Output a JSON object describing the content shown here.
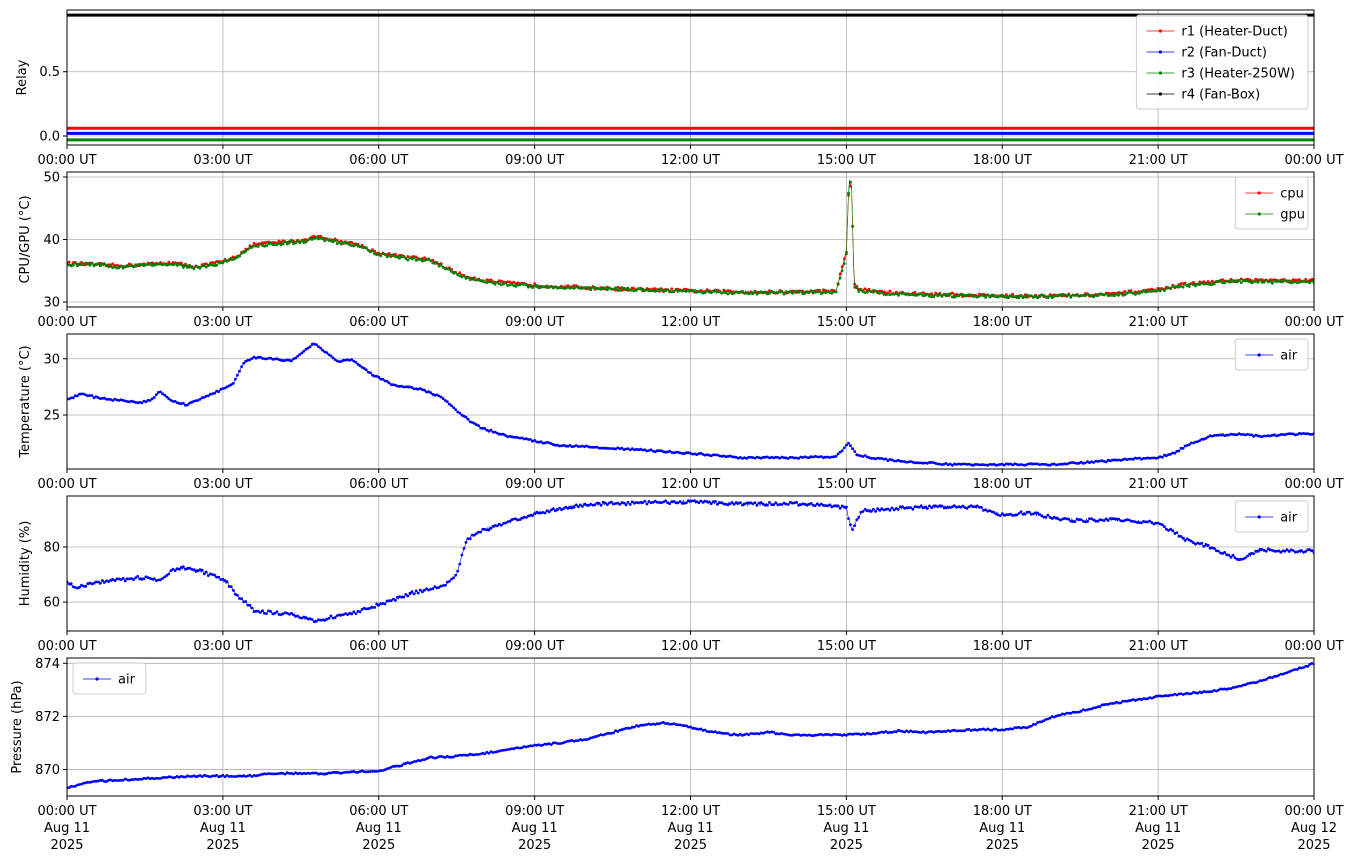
{
  "x_axis": {
    "tick_labels": [
      "00:00 UT",
      "03:00 UT",
      "06:00 UT",
      "09:00 UT",
      "12:00 UT",
      "15:00 UT",
      "18:00 UT",
      "21:00 UT",
      "00:00 UT"
    ],
    "date_labels": [
      "Aug 11",
      "Aug 11",
      "Aug 11",
      "Aug 11",
      "Aug 11",
      "Aug 11",
      "Aug 11",
      "Aug 11",
      "Aug 12"
    ],
    "year_labels": [
      "2025",
      "2025",
      "2025",
      "2025",
      "2025",
      "2025",
      "2025",
      "2025",
      "2025"
    ],
    "xlim_hours": [
      0,
      24
    ]
  },
  "colors": {
    "red": "#ff0000",
    "blue": "#0000ff",
    "green": "#008000",
    "black": "#000000"
  },
  "chart_data": [
    {
      "type": "line",
      "ylabel": "Relay",
      "ylim": [
        -0.07,
        0.98
      ],
      "yticks": [
        0.0,
        0.5
      ],
      "ytick_labels": [
        "0.0",
        "0.5"
      ],
      "grid": true,
      "legend_position": "top-right",
      "series": [
        {
          "name": "r1 (Heater-Duct)",
          "color": "#ff0000",
          "x": [
            0,
            24
          ],
          "y": [
            0.06,
            0.06
          ]
        },
        {
          "name": "r2 (Fan-Duct)",
          "color": "#0000ff",
          "x": [
            0,
            24
          ],
          "y": [
            0.02,
            0.02
          ]
        },
        {
          "name": "r3 (Heater-250W)",
          "color": "#008000",
          "x": [
            0,
            24
          ],
          "y": [
            -0.03,
            -0.03
          ]
        },
        {
          "name": "r4 (Fan-Box)",
          "color": "#000000",
          "x": [
            0,
            24
          ],
          "y": [
            0.94,
            0.94
          ]
        }
      ]
    },
    {
      "type": "line",
      "ylabel": "CPU/GPU (°C)",
      "ylim": [
        29.2,
        50.8
      ],
      "yticks": [
        30,
        40,
        50
      ],
      "ytick_labels": [
        "30",
        "40",
        "50"
      ],
      "grid": true,
      "legend_position": "top-right",
      "series": [
        {
          "name": "cpu",
          "color": "#ff0000",
          "x": [
            0,
            0.5,
            1,
            1.5,
            2,
            2.5,
            3,
            3.3,
            3.6,
            4,
            4.5,
            4.8,
            5.2,
            5.6,
            6,
            6.5,
            7,
            7.3,
            7.6,
            8,
            8.5,
            9,
            10,
            11,
            12,
            13,
            14,
            14.8,
            15.0,
            15.05,
            15.1,
            15.15,
            15.25,
            15.5,
            16,
            17,
            18,
            19,
            20,
            20.5,
            21,
            21.5,
            22,
            22.5,
            23,
            23.5,
            24
          ],
          "y": [
            36.2,
            36.0,
            35.8,
            36.0,
            36.3,
            35.6,
            36.5,
            37.5,
            39.2,
            39.5,
            39.8,
            40.5,
            39.8,
            39.2,
            37.8,
            37.2,
            36.8,
            35.5,
            34.3,
            33.5,
            33.0,
            32.7,
            32.3,
            32.0,
            31.8,
            31.6,
            31.6,
            31.8,
            38.0,
            49.5,
            48.0,
            33.0,
            32.0,
            31.8,
            31.4,
            31.2,
            31.0,
            31.0,
            31.2,
            31.6,
            32.0,
            32.8,
            33.2,
            33.5,
            33.5,
            33.4,
            33.4
          ]
        },
        {
          "name": "gpu",
          "color": "#008000",
          "x": [
            0,
            0.5,
            1,
            1.5,
            2,
            2.5,
            3,
            3.3,
            3.6,
            4,
            4.5,
            4.8,
            5.2,
            5.6,
            6,
            6.5,
            7,
            7.3,
            7.6,
            8,
            8.5,
            9,
            10,
            11,
            12,
            13,
            14,
            14.8,
            15.0,
            15.05,
            15.1,
            15.15,
            15.25,
            15.5,
            16,
            17,
            18,
            19,
            20,
            20.5,
            21,
            21.5,
            22,
            22.5,
            23,
            23.5,
            24
          ],
          "y": [
            36.0,
            36.0,
            35.6,
            36.0,
            36.0,
            35.5,
            36.3,
            37.3,
            39.0,
            39.3,
            39.6,
            40.3,
            39.6,
            39.0,
            37.6,
            37.0,
            36.6,
            35.3,
            34.1,
            33.3,
            32.8,
            32.5,
            32.2,
            32.0,
            31.6,
            31.5,
            31.5,
            31.6,
            37.5,
            49.8,
            48.5,
            32.5,
            31.8,
            31.6,
            31.2,
            31.0,
            30.9,
            30.9,
            31.1,
            31.4,
            31.9,
            32.6,
            33.0,
            33.3,
            33.3,
            33.2,
            33.2
          ]
        }
      ]
    },
    {
      "type": "line",
      "ylabel": "Temperature (°C)",
      "ylim": [
        20.2,
        32.2
      ],
      "yticks": [
        25,
        30
      ],
      "ytick_labels": [
        "25",
        "30"
      ],
      "grid": true,
      "legend_position": "top-right",
      "series": [
        {
          "name": "air",
          "color": "#0000ff",
          "x": [
            0,
            0.3,
            0.6,
            1,
            1.4,
            1.6,
            1.8,
            2,
            2.3,
            2.6,
            3,
            3.2,
            3.4,
            3.6,
            4,
            4.3,
            4.6,
            4.75,
            5,
            5.2,
            5.5,
            5.8,
            6,
            6.3,
            6.8,
            7.2,
            7.5,
            7.8,
            8,
            8.5,
            9,
            9.5,
            10,
            11,
            12,
            13,
            14,
            14.8,
            15.05,
            15.2,
            15.5,
            16,
            17,
            18,
            19,
            20,
            20.5,
            21,
            21.3,
            21.6,
            22,
            22.5,
            23,
            23.5,
            24
          ],
          "y": [
            26.4,
            26.9,
            26.5,
            26.3,
            26.1,
            26.3,
            27.1,
            26.3,
            25.9,
            26.5,
            27.3,
            27.8,
            29.6,
            30.1,
            30.0,
            29.8,
            30.8,
            31.4,
            30.5,
            29.8,
            29.9,
            28.8,
            28.3,
            27.6,
            27.3,
            26.6,
            25.4,
            24.3,
            23.8,
            23.1,
            22.7,
            22.3,
            22.2,
            21.9,
            21.6,
            21.2,
            21.2,
            21.3,
            22.5,
            21.5,
            21.2,
            20.9,
            20.6,
            20.6,
            20.6,
            20.9,
            21.1,
            21.2,
            21.6,
            22.4,
            23.1,
            23.3,
            23.1,
            23.3,
            23.3
          ]
        }
      ]
    },
    {
      "type": "line",
      "ylabel": "Humidity (%)",
      "ylim": [
        49.5,
        98.5
      ],
      "yticks": [
        60,
        80
      ],
      "ytick_labels": [
        "60",
        "80"
      ],
      "grid": true,
      "legend_position": "top-right",
      "series": [
        {
          "name": "air",
          "color": "#0000ff",
          "x": [
            0,
            0.2,
            0.5,
            1,
            1.5,
            1.8,
            2,
            2.3,
            2.6,
            2.9,
            3.1,
            3.3,
            3.6,
            4,
            4.3,
            4.6,
            4.8,
            5,
            5.3,
            5.6,
            6,
            6.3,
            6.6,
            7,
            7.3,
            7.5,
            7.7,
            8,
            8.5,
            9,
            9.5,
            10,
            11,
            12,
            13,
            14,
            14.8,
            15.0,
            15.1,
            15.3,
            16,
            17,
            17.5,
            18,
            18.5,
            19,
            19.5,
            20,
            20.5,
            21,
            21.3,
            21.6,
            22,
            22.3,
            22.6,
            23,
            23.5,
            24
          ],
          "y": [
            67,
            65,
            67,
            68,
            69,
            67.5,
            71.5,
            72.5,
            71,
            69,
            66.5,
            62,
            57,
            56,
            56,
            54,
            53,
            54,
            55.5,
            56.5,
            59,
            61,
            63,
            65,
            66.5,
            70,
            83,
            86,
            89,
            92,
            94,
            95.5,
            96,
            96.5,
            95.5,
            95.8,
            95,
            94,
            86,
            93,
            94,
            94.8,
            94.5,
            91.5,
            92.5,
            90.5,
            89.5,
            90,
            89.5,
            88.5,
            85.5,
            82,
            80,
            77.5,
            75.5,
            79,
            78.5,
            78.5
          ]
        }
      ]
    },
    {
      "type": "line",
      "ylabel": "Pressure (hPa)",
      "ylim": [
        869.0,
        874.2
      ],
      "yticks": [
        870,
        872,
        874
      ],
      "ytick_labels": [
        "870",
        "872",
        "874"
      ],
      "grid": true,
      "legend_position": "top-left",
      "series": [
        {
          "name": "air",
          "color": "#0000ff",
          "x": [
            0,
            0.5,
            1,
            1.5,
            2,
            2.5,
            3,
            3.5,
            4,
            4.5,
            5,
            5.5,
            6,
            6.5,
            7,
            7.5,
            8,
            8.5,
            9,
            9.5,
            10,
            10.5,
            11,
            11.5,
            11.8,
            12.2,
            12.6,
            13,
            13.5,
            14,
            14.5,
            15,
            15.5,
            16,
            16.5,
            17,
            17.5,
            18,
            18.5,
            19,
            19.5,
            20,
            20.5,
            21,
            21.5,
            22,
            22.5,
            23,
            23.5,
            24
          ],
          "y": [
            869.3,
            869.55,
            869.6,
            869.65,
            869.7,
            869.75,
            869.75,
            869.75,
            869.85,
            869.85,
            869.85,
            869.9,
            869.95,
            870.2,
            870.45,
            870.5,
            870.6,
            870.75,
            870.9,
            871.0,
            871.15,
            871.4,
            871.65,
            871.75,
            871.7,
            871.5,
            871.35,
            871.3,
            871.4,
            871.3,
            871.3,
            871.3,
            871.35,
            871.45,
            871.4,
            871.45,
            871.5,
            871.5,
            871.6,
            872.0,
            872.2,
            872.45,
            872.6,
            872.75,
            872.85,
            872.95,
            873.1,
            873.35,
            873.65,
            874.0
          ]
        }
      ]
    }
  ]
}
